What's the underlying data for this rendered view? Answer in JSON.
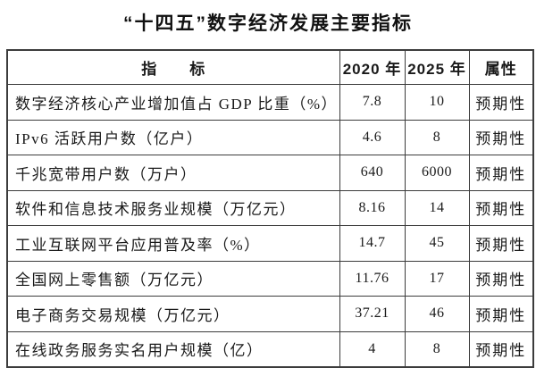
{
  "title": "“十四五”数字经济发展主要指标",
  "table": {
    "headers": {
      "indicator": "指　　标",
      "y2020": "2020 年",
      "y2025": "2025 年",
      "attribute": "属性"
    },
    "rows": [
      {
        "indicator": "数字经济核心产业增加值占 GDP 比重（%）",
        "y2020": "7.8",
        "y2025": "10",
        "attribute": "预期性"
      },
      {
        "indicator": "IPv6 活跃用户数（亿户）",
        "y2020": "4.6",
        "y2025": "8",
        "attribute": "预期性"
      },
      {
        "indicator": "千兆宽带用户数（万户）",
        "y2020": "640",
        "y2025": "6000",
        "attribute": "预期性"
      },
      {
        "indicator": "软件和信息技术服务业规模（万亿元）",
        "y2020": "8.16",
        "y2025": "14",
        "attribute": "预期性"
      },
      {
        "indicator": "工业互联网平台应用普及率（%）",
        "y2020": "14.7",
        "y2025": "45",
        "attribute": "预期性"
      },
      {
        "indicator": "全国网上零售额（万亿元）",
        "y2020": "11.76",
        "y2025": "17",
        "attribute": "预期性"
      },
      {
        "indicator": "电子商务交易规模（万亿元）",
        "y2020": "37.21",
        "y2025": "46",
        "attribute": "预期性"
      },
      {
        "indicator": "在线政务服务实名用户规模（亿）",
        "y2020": "4",
        "y2025": "8",
        "attribute": "预期性"
      }
    ],
    "border_color": "#3c3c3c",
    "text_color": "#1a1a1a"
  }
}
